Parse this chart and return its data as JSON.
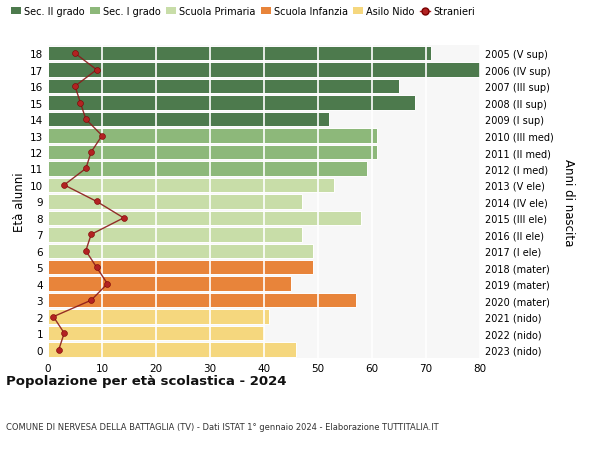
{
  "ages": [
    0,
    1,
    2,
    3,
    4,
    5,
    6,
    7,
    8,
    9,
    10,
    11,
    12,
    13,
    14,
    15,
    16,
    17,
    18
  ],
  "years_labels": [
    "2023 (nido)",
    "2022 (nido)",
    "2021 (nido)",
    "2020 (mater)",
    "2019 (mater)",
    "2018 (mater)",
    "2017 (I ele)",
    "2016 (II ele)",
    "2015 (III ele)",
    "2014 (IV ele)",
    "2013 (V ele)",
    "2012 (I med)",
    "2011 (II med)",
    "2010 (III med)",
    "2009 (I sup)",
    "2008 (II sup)",
    "2007 (III sup)",
    "2006 (IV sup)",
    "2005 (V sup)"
  ],
  "bar_values": [
    46,
    40,
    41,
    57,
    45,
    49,
    49,
    47,
    58,
    47,
    53,
    59,
    61,
    61,
    52,
    68,
    65,
    80,
    71
  ],
  "bar_colors": [
    "#f5d77e",
    "#f5d77e",
    "#f5d77e",
    "#e8843a",
    "#e8843a",
    "#e8843a",
    "#c8dda8",
    "#c8dda8",
    "#c8dda8",
    "#c8dda8",
    "#c8dda8",
    "#8db87a",
    "#8db87a",
    "#8db87a",
    "#4d7a4d",
    "#4d7a4d",
    "#4d7a4d",
    "#4d7a4d",
    "#4d7a4d"
  ],
  "stranieri_values": [
    2,
    3,
    1,
    8,
    11,
    9,
    7,
    8,
    14,
    9,
    3,
    7,
    8,
    10,
    7,
    6,
    5,
    9,
    5
  ],
  "legend_labels": [
    "Sec. II grado",
    "Sec. I grado",
    "Scuola Primaria",
    "Scuola Infanzia",
    "Asilo Nido",
    "Stranieri"
  ],
  "legend_colors": [
    "#4d7a4d",
    "#8db87a",
    "#c8dda8",
    "#e8843a",
    "#f5d77e",
    "#b22222"
  ],
  "title": "Popolazione per età scolastica - 2024",
  "subtitle": "COMUNE DI NERVESA DELLA BATTAGLIA (TV) - Dati ISTAT 1° gennaio 2024 - Elaborazione TUTTITALIA.IT",
  "ylabel_left": "Età alunni",
  "ylabel_right": "Anni di nascita",
  "xlim": [
    0,
    80
  ],
  "xticks": [
    0,
    10,
    20,
    30,
    40,
    50,
    60,
    70,
    80
  ],
  "background_color": "#ffffff"
}
